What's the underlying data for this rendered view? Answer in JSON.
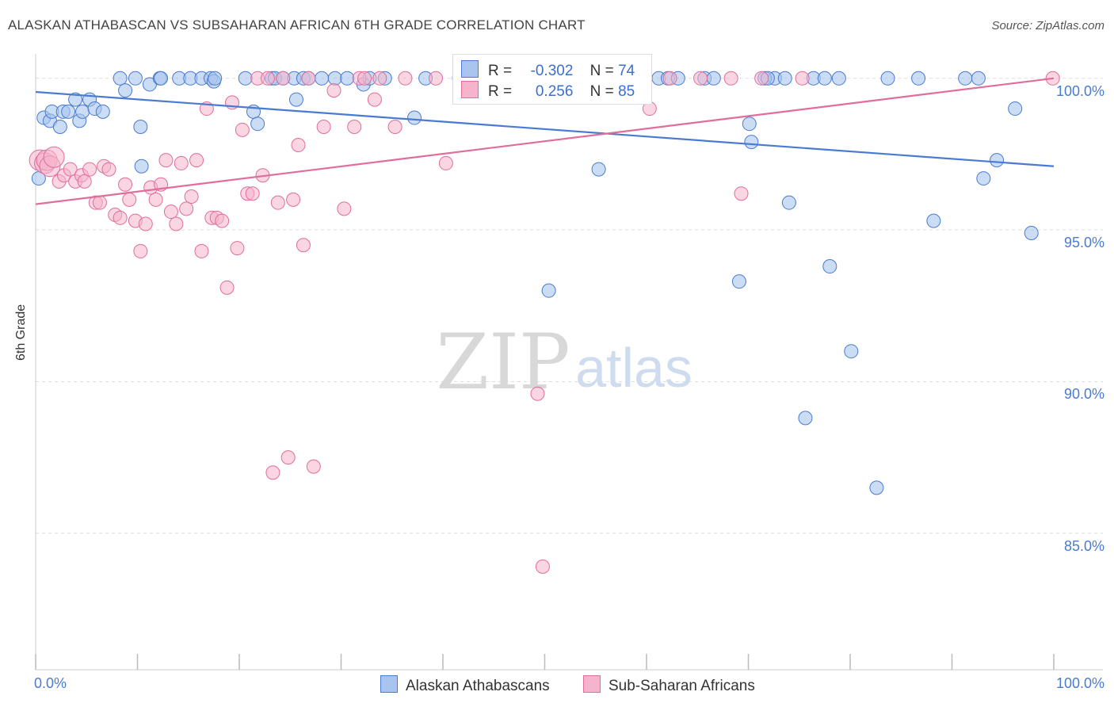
{
  "title": "ALASKAN ATHABASCAN VS SUBSAHARAN AFRICAN 6TH GRADE CORRELATION CHART",
  "source": "Source: ZipAtlas.com",
  "watermark": {
    "zip": "ZIP",
    "atlas": "atlas"
  },
  "colors": {
    "blue": "#4a7bd0",
    "blue_fill": "#a8c4ef",
    "pink": "#e06d9c",
    "pink_fill": "#f5b4cb",
    "grid": "#dddddd"
  },
  "stats": [
    {
      "r_label": "R =",
      "r_value": "-0.302",
      "n_label": "N =",
      "n_value": "74"
    },
    {
      "r_label": "R =",
      "r_value": "0.256",
      "n_label": "N =",
      "n_value": "85"
    }
  ],
  "legend": [
    {
      "label": "Alaskan Athabascans"
    },
    {
      "label": "Sub-Saharan Africans"
    }
  ],
  "chart_data": {
    "type": "scatter",
    "title": "ALASKAN ATHABASCAN VS SUBSAHARAN AFRICAN 6TH GRADE CORRELATION CHART",
    "xlabel": "",
    "ylabel": "6th Grade",
    "xlim": [
      0,
      100
    ],
    "ylim": [
      80.5,
      100.7
    ],
    "x_tick_labels": [
      "0.0%",
      "100.0%"
    ],
    "y_ticks": [
      85,
      90,
      95,
      100
    ],
    "y_tick_labels": [
      "85.0%",
      "90.0%",
      "95.0%",
      "100.0%"
    ],
    "grid": true,
    "legend_position": "bottom-center",
    "series": [
      {
        "name": "Alaskan Athabascans",
        "trend": {
          "x": [
            0,
            100
          ],
          "y": [
            99.55,
            97.1
          ]
        },
        "points": [
          [
            0.3,
            96.7
          ],
          [
            0.8,
            98.7
          ],
          [
            1.4,
            98.6
          ],
          [
            1.6,
            98.9
          ],
          [
            2.4,
            98.4
          ],
          [
            2.7,
            98.9
          ],
          [
            3.2,
            98.9
          ],
          [
            3.9,
            99.3
          ],
          [
            4.3,
            98.6
          ],
          [
            4.6,
            98.9
          ],
          [
            5.3,
            99.3
          ],
          [
            5.8,
            99.0
          ],
          [
            6.6,
            98.9
          ],
          [
            8.3,
            100.0
          ],
          [
            9.8,
            100.0
          ],
          [
            8.8,
            99.6
          ],
          [
            10.3,
            98.4
          ],
          [
            10.4,
            97.1
          ],
          [
            11.2,
            99.8
          ],
          [
            12.2,
            100.0
          ],
          [
            12.3,
            100.0
          ],
          [
            14.1,
            100.0
          ],
          [
            15.2,
            100.0
          ],
          [
            16.3,
            100.0
          ],
          [
            17.2,
            100.0
          ],
          [
            17.5,
            99.9
          ],
          [
            17.6,
            100.0
          ],
          [
            20.6,
            100.0
          ],
          [
            21.4,
            98.9
          ],
          [
            21.8,
            98.5
          ],
          [
            23.2,
            100.0
          ],
          [
            23.5,
            100.0
          ],
          [
            24.3,
            100.0
          ],
          [
            25.4,
            100.0
          ],
          [
            25.6,
            99.3
          ],
          [
            26.3,
            100.0
          ],
          [
            26.8,
            100.0
          ],
          [
            28.1,
            100.0
          ],
          [
            29.4,
            100.0
          ],
          [
            30.6,
            100.0
          ],
          [
            32.2,
            99.8
          ],
          [
            32.8,
            100.0
          ],
          [
            34.3,
            100.0
          ],
          [
            37.2,
            98.7
          ],
          [
            38.3,
            100.0
          ],
          [
            41.6,
            100.0
          ],
          [
            45.3,
            100.0
          ],
          [
            47.5,
            100.0
          ],
          [
            50.2,
            100.0
          ],
          [
            51.7,
            100.0
          ],
          [
            53.6,
            100.0
          ],
          [
            50.4,
            93.0
          ],
          [
            55.3,
            97.0
          ],
          [
            59.6,
            100.0
          ],
          [
            61.2,
            100.0
          ],
          [
            62.1,
            100.0
          ],
          [
            63.1,
            100.0
          ],
          [
            65.7,
            100.0
          ],
          [
            66.6,
            100.0
          ],
          [
            72.6,
            100.0
          ],
          [
            69.1,
            93.3
          ],
          [
            70.1,
            98.5
          ],
          [
            70.3,
            97.9
          ],
          [
            71.6,
            100.0
          ],
          [
            71.9,
            100.0
          ],
          [
            73.6,
            100.0
          ],
          [
            74.0,
            95.9
          ],
          [
            76.4,
            100.0
          ],
          [
            77.5,
            100.0
          ],
          [
            78.0,
            93.8
          ],
          [
            78.9,
            100.0
          ],
          [
            80.1,
            91.0
          ],
          [
            83.7,
            100.0
          ],
          [
            75.6,
            88.8
          ]
        ],
        "points_extra": [
          [
            82.6,
            86.5
          ],
          [
            86.7,
            100.0
          ],
          [
            88.2,
            95.3
          ],
          [
            91.3,
            100.0
          ],
          [
            92.6,
            100.0
          ],
          [
            93.1,
            96.7
          ],
          [
            94.4,
            97.3
          ],
          [
            96.2,
            99.0
          ],
          [
            97.8,
            94.9
          ]
        ]
      },
      {
        "name": "Sub-Saharan Africans",
        "trend": {
          "x": [
            0,
            100
          ],
          "y": [
            95.85,
            100.0
          ]
        },
        "points": [
          [
            0.4,
            97.3
          ],
          [
            0.9,
            97.2
          ],
          [
            1.1,
            97.3
          ],
          [
            1.4,
            97.1
          ],
          [
            1.8,
            97.4
          ],
          [
            2.3,
            96.6
          ],
          [
            2.8,
            96.8
          ],
          [
            3.4,
            97.0
          ],
          [
            3.9,
            96.6
          ],
          [
            4.5,
            96.8
          ],
          [
            4.8,
            96.6
          ],
          [
            5.3,
            97.0
          ],
          [
            5.9,
            95.9
          ],
          [
            6.3,
            95.9
          ],
          [
            6.7,
            97.1
          ],
          [
            7.2,
            97.0
          ],
          [
            7.8,
            95.5
          ],
          [
            8.3,
            95.4
          ],
          [
            8.8,
            96.5
          ],
          [
            9.2,
            96.0
          ],
          [
            9.8,
            95.3
          ],
          [
            10.3,
            94.3
          ],
          [
            10.8,
            95.2
          ],
          [
            11.3,
            96.4
          ],
          [
            11.8,
            96.0
          ],
          [
            12.3,
            96.5
          ],
          [
            12.8,
            97.3
          ],
          [
            13.3,
            95.6
          ],
          [
            13.8,
            95.2
          ],
          [
            14.3,
            97.2
          ],
          [
            14.8,
            95.7
          ],
          [
            15.3,
            96.1
          ],
          [
            15.8,
            97.3
          ],
          [
            16.3,
            94.3
          ],
          [
            16.8,
            99.0
          ],
          [
            17.3,
            95.4
          ],
          [
            17.8,
            95.4
          ],
          [
            18.3,
            95.3
          ],
          [
            18.8,
            93.1
          ],
          [
            19.3,
            99.2
          ],
          [
            19.8,
            94.4
          ],
          [
            20.3,
            98.3
          ],
          [
            20.8,
            96.2
          ],
          [
            21.3,
            96.2
          ],
          [
            21.8,
            100.0
          ],
          [
            22.3,
            96.8
          ],
          [
            22.8,
            100.0
          ],
          [
            23.3,
            87.0
          ],
          [
            23.8,
            95.9
          ],
          [
            24.3,
            100.0
          ],
          [
            24.8,
            87.5
          ],
          [
            25.3,
            96.0
          ],
          [
            25.8,
            97.8
          ],
          [
            26.3,
            94.5
          ],
          [
            26.8,
            100.0
          ],
          [
            27.3,
            87.2
          ],
          [
            28.3,
            98.4
          ],
          [
            29.3,
            99.6
          ],
          [
            30.3,
            95.7
          ],
          [
            31.3,
            98.4
          ],
          [
            31.8,
            100.0
          ],
          [
            32.3,
            100.0
          ],
          [
            33.3,
            99.3
          ],
          [
            33.8,
            100.0
          ],
          [
            35.3,
            98.4
          ],
          [
            36.3,
            100.0
          ],
          [
            39.3,
            100.0
          ],
          [
            40.3,
            97.2
          ],
          [
            42.3,
            100.0
          ],
          [
            45.3,
            100.0
          ],
          [
            47.3,
            100.0
          ],
          [
            49.3,
            89.6
          ],
          [
            49.8,
            83.9
          ],
          [
            52.3,
            100.0
          ],
          [
            54.3,
            100.0
          ],
          [
            57.3,
            100.0
          ],
          [
            59.3,
            100.0
          ],
          [
            62.3,
            100.0
          ],
          [
            65.3,
            100.0
          ],
          [
            68.3,
            100.0
          ],
          [
            69.3,
            96.2
          ],
          [
            71.3,
            100.0
          ],
          [
            75.3,
            100.0
          ],
          [
            99.9,
            100.0
          ],
          [
            60.3,
            99.0
          ]
        ]
      }
    ]
  }
}
